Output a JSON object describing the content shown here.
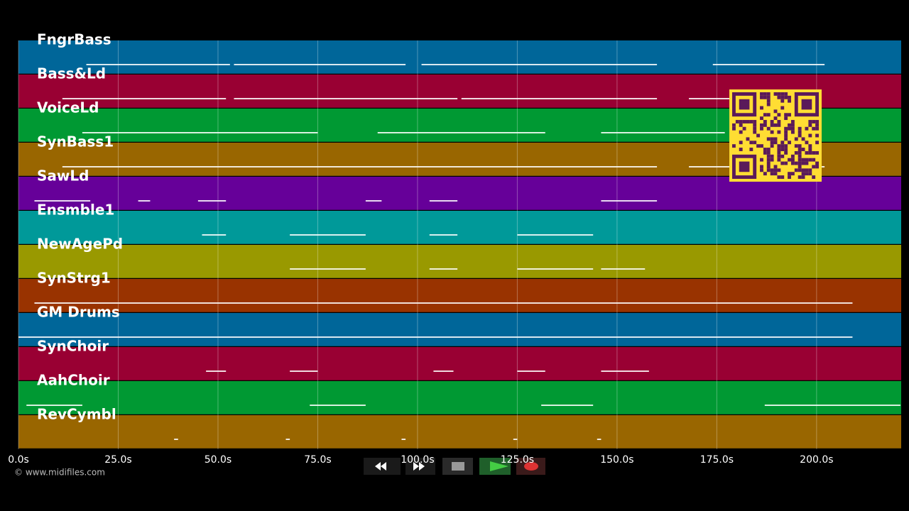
{
  "tracks": [
    {
      "name": "FngrBass",
      "color": "#006699",
      "notes": [
        [
          17,
          53
        ],
        [
          54,
          97
        ],
        [
          101,
          160
        ],
        [
          174,
          202
        ]
      ]
    },
    {
      "name": "Bass&Ld",
      "color": "#990033",
      "notes": [
        [
          11,
          52
        ],
        [
          54,
          110
        ],
        [
          111,
          160
        ],
        [
          168,
          201
        ]
      ]
    },
    {
      "name": "VoiceLd",
      "color": "#009933",
      "notes": [
        [
          16,
          75
        ],
        [
          90,
          132
        ],
        [
          146,
          177
        ]
      ]
    },
    {
      "name": "SynBass1",
      "color": "#996600",
      "notes": [
        [
          11,
          160
        ],
        [
          168,
          202
        ]
      ]
    },
    {
      "name": "SawLd",
      "color": "#660099",
      "notes": [
        [
          4,
          18
        ],
        [
          30,
          33
        ],
        [
          45,
          52
        ],
        [
          87,
          91
        ],
        [
          103,
          110
        ],
        [
          146,
          160
        ]
      ]
    },
    {
      "name": "Ensmble1",
      "color": "#009999",
      "notes": [
        [
          46,
          52
        ],
        [
          68,
          87
        ],
        [
          103,
          110
        ],
        [
          125,
          144
        ]
      ]
    },
    {
      "name": "NewAgePd",
      "color": "#999900",
      "notes": [
        [
          68,
          87
        ],
        [
          103,
          110
        ],
        [
          125,
          144
        ],
        [
          146,
          157
        ]
      ]
    },
    {
      "name": "SynStrg1",
      "color": "#993300",
      "notes": [
        [
          4,
          209
        ]
      ]
    },
    {
      "name": "GM Drums",
      "color": "#006699",
      "notes": [
        [
          0,
          209
        ]
      ]
    },
    {
      "name": "SynChoir",
      "color": "#990033",
      "notes": [
        [
          47,
          52
        ],
        [
          68,
          75
        ],
        [
          104,
          109
        ],
        [
          125,
          132
        ],
        [
          146,
          158
        ]
      ]
    },
    {
      "name": "AahChoir",
      "color": "#009933",
      "notes": [
        [
          2,
          16
        ],
        [
          73,
          87
        ],
        [
          131,
          144
        ],
        [
          187,
          221
        ]
      ]
    },
    {
      "name": "RevCymbl",
      "color": "#996600",
      "notes": [
        [
          39,
          40
        ],
        [
          67,
          68
        ],
        [
          96,
          97
        ],
        [
          124,
          125
        ],
        [
          145,
          146
        ]
      ]
    }
  ],
  "timeline": {
    "xlim": [
      0,
      221.2
    ],
    "xticks": [
      {
        "value": 0,
        "label": "0.0s"
      },
      {
        "value": 25,
        "label": "25.0s"
      },
      {
        "value": 50,
        "label": "50.0s"
      },
      {
        "value": 75,
        "label": "75.0s"
      },
      {
        "value": 100,
        "label": "100.0s"
      },
      {
        "value": 125,
        "label": "125.0s"
      },
      {
        "value": 150,
        "label": "150.0s"
      },
      {
        "value": 175,
        "label": "175.0s"
      },
      {
        "value": 200,
        "label": "200.0s"
      }
    ]
  },
  "copyright": "© www.midifiles.com"
}
